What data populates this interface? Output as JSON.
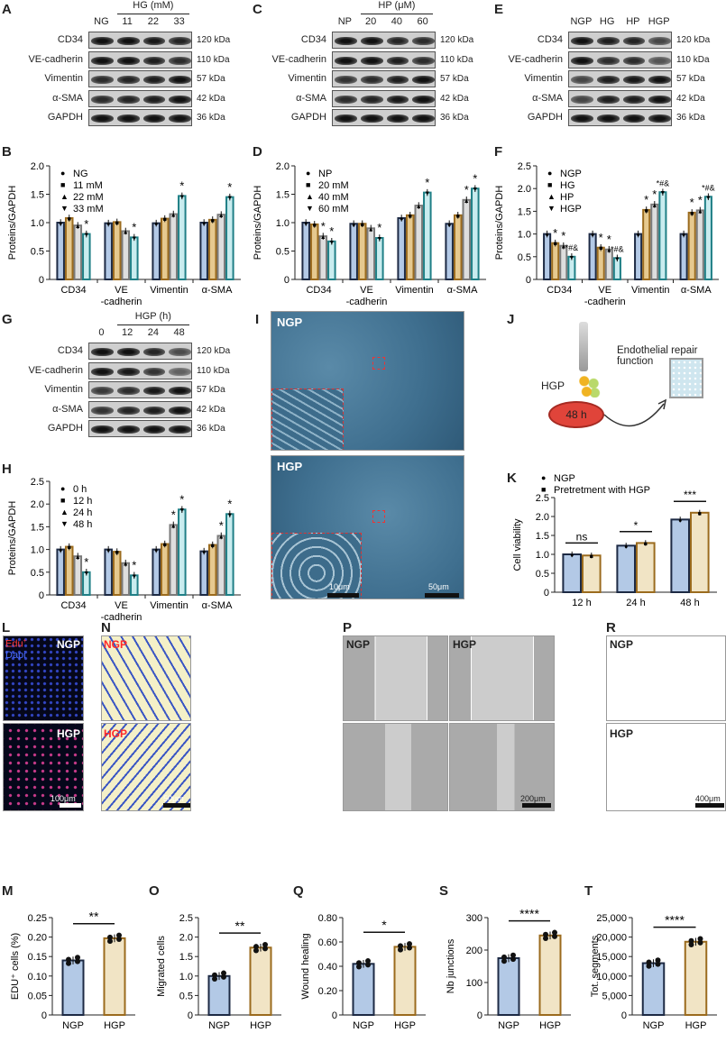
{
  "panels": {
    "A": "A",
    "B": "B",
    "C": "C",
    "D": "D",
    "E": "E",
    "F": "F",
    "G": "G",
    "H": "H",
    "I": "I",
    "J": "J",
    "K": "K",
    "L": "L",
    "M": "M",
    "N": "N",
    "O": "O",
    "P": "P",
    "Q": "Q",
    "R": "R",
    "S": "S",
    "T": "T"
  },
  "blots": {
    "A": {
      "header": "HG (mM)",
      "lanes": [
        "NG",
        "11",
        "22",
        "33"
      ],
      "header_lanes_from": 1,
      "rows": [
        {
          "label": "CD34",
          "kda": "120 kDa",
          "intensity": [
            1,
            1,
            0.95,
            0.85
          ]
        },
        {
          "label": "VE-cadherin",
          "kda": "110 kDa",
          "intensity": [
            1,
            1,
            0.9,
            0.8
          ]
        },
        {
          "label": "Vimentin",
          "kda": "57 kDa",
          "intensity": [
            0.8,
            0.85,
            0.9,
            1
          ]
        },
        {
          "label": "α-SMA",
          "kda": "42 kDa",
          "intensity": [
            0.8,
            0.85,
            0.9,
            1
          ]
        },
        {
          "label": "GAPDH",
          "kda": "36 kDa",
          "intensity": [
            1,
            1,
            1,
            1
          ]
        }
      ]
    },
    "C": {
      "header": "HP (μM)",
      "lanes": [
        "NP",
        "20",
        "40",
        "60"
      ],
      "header_lanes_from": 1,
      "rows": [
        {
          "label": "CD34",
          "kda": "120 kDa",
          "intensity": [
            1,
            1,
            0.85,
            0.8
          ]
        },
        {
          "label": "VE-cadherin",
          "kda": "110 kDa",
          "intensity": [
            1,
            1,
            0.9,
            0.8
          ]
        },
        {
          "label": "Vimentin",
          "kda": "57 kDa",
          "intensity": [
            0.75,
            0.8,
            0.9,
            1
          ]
        },
        {
          "label": "α-SMA",
          "kda": "42 kDa",
          "intensity": [
            0.8,
            0.85,
            0.95,
            1
          ]
        },
        {
          "label": "GAPDH",
          "kda": "36 kDa",
          "intensity": [
            1,
            1,
            1,
            1
          ]
        }
      ]
    },
    "E": {
      "header": "",
      "lanes": [
        "NGP",
        "HG",
        "HP",
        "HGP"
      ],
      "header_lanes_from": 0,
      "rows": [
        {
          "label": "CD34",
          "kda": "120 kDa",
          "intensity": [
            1,
            0.9,
            0.85,
            0.6
          ]
        },
        {
          "label": "VE-cadherin",
          "kda": "110 kDa",
          "intensity": [
            1,
            0.8,
            0.8,
            0.5
          ]
        },
        {
          "label": "Vimentin",
          "kda": "57 kDa",
          "intensity": [
            0.6,
            0.9,
            0.95,
            1
          ]
        },
        {
          "label": "α-SMA",
          "kda": "42 kDa",
          "intensity": [
            0.6,
            0.9,
            0.9,
            1
          ]
        },
        {
          "label": "GAPDH",
          "kda": "36 kDa",
          "intensity": [
            1,
            1,
            1,
            1
          ]
        }
      ]
    },
    "G": {
      "header": "HGP (h)",
      "lanes": [
        "0",
        "12",
        "24",
        "48"
      ],
      "header_lanes_from": 1,
      "rows": [
        {
          "label": "CD34",
          "kda": "120 kDa",
          "intensity": [
            1,
            1,
            0.85,
            0.55
          ]
        },
        {
          "label": "VE-cadherin",
          "kda": "110 kDa",
          "intensity": [
            1,
            0.95,
            0.75,
            0.4
          ]
        },
        {
          "label": "Vimentin",
          "kda": "57 kDa",
          "intensity": [
            0.7,
            0.8,
            0.95,
            1
          ]
        },
        {
          "label": "α-SMA",
          "kda": "42 kDa",
          "intensity": [
            0.75,
            0.85,
            0.9,
            1
          ]
        },
        {
          "label": "GAPDH",
          "kda": "36 kDa",
          "intensity": [
            1,
            1,
            1,
            1
          ]
        }
      ]
    }
  },
  "images": {
    "I": {
      "top": "NGP",
      "bottom": "HGP",
      "inset_scale": "10μm",
      "scale": "50μm"
    },
    "L": {
      "legend_edu": "Edu",
      "legend_edu_sup": "+",
      "legend_dapi": "Dapi",
      "top": "NGP",
      "bottom": "HGP",
      "scale": "100μm"
    },
    "N": {
      "top": "NGP",
      "bottom": "HGP",
      "scale": "50μm"
    },
    "P": {
      "left": "NGP",
      "right": "HGP",
      "scale": "200μm"
    },
    "R": {
      "top": "NGP",
      "bottom": "HGP",
      "scale": "400μm"
    }
  },
  "diagram_J": {
    "title": "Endothelial repair function",
    "treatment": "HGP",
    "dish_label": "48 h",
    "colors": {
      "dish": "#e0443a",
      "plate": "#cfe6ef"
    }
  },
  "chart_data": [
    {
      "id": "B",
      "type": "bar",
      "categories": [
        "CD34",
        "VE\n-cadherin",
        "Vimentin",
        "α-SMA"
      ],
      "ylabel": "Proteins/GAPDH",
      "ylim": [
        0,
        2
      ],
      "ticks": [
        0,
        0.5,
        1.0,
        1.5,
        2.0
      ],
      "legend": "top-left",
      "series": [
        {
          "name": "NG",
          "marker": "●",
          "values": [
            1.0,
            0.99,
            0.99,
            1.0
          ]
        },
        {
          "name": "11 mM",
          "marker": "■",
          "values": [
            1.08,
            1.01,
            1.07,
            1.05
          ]
        },
        {
          "name": "22 mM",
          "marker": "▲",
          "values": [
            0.95,
            0.85,
            1.15,
            1.14
          ]
        },
        {
          "name": "33 mM",
          "marker": "▼",
          "values": [
            0.8,
            0.74,
            1.47,
            1.45
          ],
          "sig": [
            "*",
            "*",
            "*",
            "*"
          ]
        }
      ]
    },
    {
      "id": "D",
      "type": "bar",
      "categories": [
        "CD34",
        "VE\n-cadherin",
        "Vimentin",
        "α-SMA"
      ],
      "ylabel": "Proteins/GAPDH",
      "ylim": [
        0,
        2
      ],
      "ticks": [
        0,
        0.5,
        1.0,
        1.5,
        2.0
      ],
      "legend": "top-left",
      "series": [
        {
          "name": "NP",
          "marker": "●",
          "values": [
            1.0,
            0.98,
            1.08,
            0.98
          ]
        },
        {
          "name": "20 mM",
          "marker": "■",
          "values": [
            0.97,
            0.98,
            1.13,
            1.13
          ]
        },
        {
          "name": "40 mM",
          "marker": "▲",
          "values": [
            0.76,
            0.9,
            1.3,
            1.4
          ],
          "sig": [
            "*",
            "",
            "",
            "*"
          ]
        },
        {
          "name": "60 mM",
          "marker": "▼",
          "values": [
            0.67,
            0.73,
            1.53,
            1.6
          ],
          "sig": [
            "*",
            "*",
            "*",
            "*"
          ]
        }
      ]
    },
    {
      "id": "F",
      "type": "bar",
      "categories": [
        "CD34",
        "VE\n-cadherin",
        "Vimentin",
        "α-SMA"
      ],
      "ylabel": "Proteins/GAPDH",
      "ylim": [
        0,
        2.5
      ],
      "ticks": [
        0,
        0.5,
        1.0,
        1.5,
        2.0,
        2.5
      ],
      "legend": "top-left",
      "series": [
        {
          "name": "NGP",
          "marker": "●",
          "values": [
            1.0,
            1.0,
            1.0,
            1.0
          ]
        },
        {
          "name": "HG",
          "marker": "■",
          "values": [
            0.8,
            0.7,
            1.53,
            1.47
          ],
          "sig": [
            "*",
            "*",
            "*",
            "*"
          ]
        },
        {
          "name": "HP",
          "marker": "▲",
          "values": [
            0.74,
            0.66,
            1.65,
            1.52
          ],
          "sig": [
            "*",
            "*",
            "*",
            "*"
          ]
        },
        {
          "name": "HGP",
          "marker": "▼",
          "values": [
            0.5,
            0.47,
            1.92,
            1.82
          ],
          "sig": [
            "*#&",
            "*#&",
            "*#&",
            "*#&"
          ]
        }
      ]
    },
    {
      "id": "H",
      "type": "bar",
      "categories": [
        "CD34",
        "VE\n-cadherin",
        "Vimentin",
        "α-SMA"
      ],
      "ylabel": "Proteins/GAPDH",
      "ylim": [
        0,
        2.5
      ],
      "ticks": [
        0,
        0.5,
        1.0,
        1.5,
        2.0,
        2.5
      ],
      "legend": "top-left",
      "series": [
        {
          "name": "0 h",
          "marker": "●",
          "values": [
            1.0,
            1.0,
            1.0,
            0.96
          ]
        },
        {
          "name": "12 h",
          "marker": "■",
          "values": [
            1.06,
            0.95,
            1.12,
            1.1
          ]
        },
        {
          "name": "24 h",
          "marker": "▲",
          "values": [
            0.85,
            0.7,
            1.54,
            1.3
          ],
          "sig": [
            "",
            "",
            "*",
            "*"
          ]
        },
        {
          "name": "48 h",
          "marker": "▼",
          "values": [
            0.5,
            0.43,
            1.88,
            1.78
          ],
          "sig": [
            "*",
            "*",
            "*",
            "*"
          ]
        }
      ]
    },
    {
      "id": "K",
      "type": "bar",
      "categories": [
        "12 h",
        "24 h",
        "48 h"
      ],
      "ylabel": "Cell viability",
      "ylim": [
        0,
        2.5
      ],
      "ticks": [
        0,
        0.5,
        1.0,
        1.5,
        2.0,
        2.5
      ],
      "legend": "top",
      "series": [
        {
          "name": "NGP",
          "marker": "●",
          "values": [
            1.0,
            1.23,
            1.92
          ]
        },
        {
          "name": "Pretretment with HGP",
          "marker": "■",
          "values": [
            0.97,
            1.3,
            2.1
          ]
        }
      ],
      "brackets": [
        "ns",
        "*",
        "***"
      ]
    },
    {
      "id": "M",
      "type": "bar",
      "categories": [
        "NGP",
        "HGP"
      ],
      "ylabel": "EDU⁺ cells (%)",
      "ylim": [
        0,
        0.25
      ],
      "ticks": [
        0,
        0.05,
        0.1,
        0.15,
        0.2,
        0.25
      ],
      "values": [
        0.14,
        0.197
      ],
      "bracket": "**"
    },
    {
      "id": "O",
      "type": "bar",
      "categories": [
        "NGP",
        "HGP"
      ],
      "ylabel": "Migrated cells",
      "ylim": [
        0,
        2.5
      ],
      "ticks": [
        0,
        0.5,
        1.0,
        1.5,
        2.0,
        2.5
      ],
      "values": [
        1.0,
        1.73
      ],
      "bracket": "**"
    },
    {
      "id": "Q",
      "type": "bar",
      "categories": [
        "NGP",
        "HGP"
      ],
      "ylabel": "Wound healing",
      "ylim": [
        0,
        0.8
      ],
      "ticks": [
        0,
        0.2,
        0.4,
        0.6,
        0.8
      ],
      "values": [
        0.42,
        0.56
      ],
      "bracket": "*"
    },
    {
      "id": "S",
      "type": "bar",
      "categories": [
        "NGP",
        "HGP"
      ],
      "ylabel": "Nb junctions",
      "ylim": [
        0,
        300
      ],
      "ticks": [
        0,
        100,
        200,
        300
      ],
      "values": [
        175,
        245
      ],
      "bracket": "****"
    },
    {
      "id": "T",
      "type": "bar",
      "categories": [
        "NGP",
        "HGP"
      ],
      "ylabel": "Tot. segments",
      "ylim": [
        0,
        25000
      ],
      "ticks": [
        0,
        5000,
        10000,
        15000,
        20000,
        25000
      ],
      "tick_labels": [
        "0",
        "5,000",
        "10,000",
        "15,000",
        "20,000",
        "25,000"
      ],
      "values": [
        13300,
        18800
      ],
      "bracket": "****"
    }
  ],
  "colors": {
    "fills": [
      "#b3c9e6",
      "#e6c98f",
      "#dedede",
      "#c9ecef"
    ],
    "borders": [
      "#1d2a44",
      "#9b6b1e",
      "#7a7a7a",
      "#1f7f86"
    ],
    "pair_fills": [
      "#b3c9e6",
      "#f1e4c5"
    ],
    "pair_borders": [
      "#1d2a44",
      "#9b6b1e"
    ]
  }
}
